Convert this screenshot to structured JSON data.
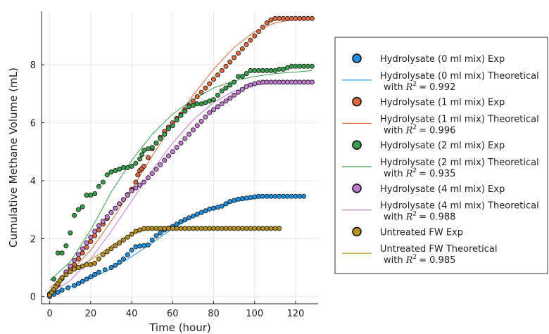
{
  "chart_data": {
    "type": "scatter",
    "xlabel": "Time (hour)",
    "ylabel": "Cumulative Methane Volume (mL)",
    "xlim": [
      -4,
      131
    ],
    "ylim": [
      -0.25,
      9.85
    ],
    "xticks": [
      0,
      20,
      40,
      60,
      80,
      100,
      120
    ],
    "yticks": [
      0,
      2,
      4,
      6,
      8
    ],
    "grid": true,
    "legend_position": "right",
    "series": [
      {
        "name": "Hydrolysate (0 ml mix) Exp",
        "kind": "points",
        "color": "#1f8fe0",
        "x": [
          0,
          2,
          4,
          6,
          9,
          12,
          14,
          16,
          18,
          20,
          22,
          24,
          27,
          30,
          32,
          34,
          36,
          38,
          40,
          42,
          44,
          46,
          48,
          50,
          52,
          54,
          56,
          58,
          60,
          62,
          64,
          66,
          68,
          70,
          72,
          74,
          76,
          78,
          80,
          82,
          84,
          86,
          88,
          90,
          92,
          94,
          96,
          98,
          100,
          102,
          104,
          106,
          108,
          110,
          112,
          114,
          116,
          118,
          120,
          122,
          124
        ],
        "y": [
          0.0,
          0.08,
          0.15,
          0.22,
          0.3,
          0.38,
          0.45,
          0.52,
          0.6,
          0.68,
          0.76,
          0.84,
          0.92,
          1.0,
          1.08,
          1.18,
          1.3,
          1.44,
          1.6,
          1.72,
          1.74,
          1.76,
          1.78,
          1.95,
          2.1,
          2.2,
          2.3,
          2.36,
          2.42,
          2.5,
          2.58,
          2.65,
          2.72,
          2.78,
          2.84,
          2.9,
          2.96,
          3.02,
          3.05,
          3.08,
          3.12,
          3.2,
          3.28,
          3.32,
          3.36,
          3.38,
          3.4,
          3.42,
          3.44,
          3.46,
          3.46,
          3.46,
          3.46,
          3.46,
          3.46,
          3.46,
          3.46,
          3.46,
          3.46,
          3.46,
          3.46
        ]
      },
      {
        "name": "Hydrolysate (0 ml mix) Theoretical",
        "r2_label": "with",
        "r2_value": "= 0.992",
        "kind": "line",
        "color": "#1f8fe0",
        "x": [
          0,
          10,
          20,
          30,
          40,
          50,
          60,
          70,
          80,
          90,
          100,
          110,
          120,
          124
        ],
        "y": [
          0.1,
          0.33,
          0.62,
          0.96,
          1.38,
          1.85,
          2.35,
          2.75,
          3.06,
          3.27,
          3.38,
          3.44,
          3.47,
          3.48
        ]
      },
      {
        "name": "Hydrolysate (1 ml mix) Exp",
        "kind": "points",
        "color": "#e0683c",
        "x": [
          0,
          2,
          4,
          6,
          8,
          10,
          12,
          14,
          16,
          18,
          20,
          22,
          24,
          26,
          28,
          30,
          32,
          34,
          36,
          38,
          40,
          42,
          43,
          44,
          45,
          46,
          48,
          50,
          52,
          54,
          56,
          58,
          60,
          62,
          64,
          66,
          68,
          70,
          72,
          74,
          76,
          78,
          80,
          82,
          84,
          86,
          88,
          90,
          92,
          94,
          96,
          98,
          100,
          102,
          104,
          106,
          108,
          110,
          112,
          114,
          116,
          118,
          120,
          122,
          124,
          126,
          128
        ],
        "y": [
          0.05,
          0.2,
          0.4,
          0.62,
          0.8,
          0.95,
          1.1,
          1.3,
          1.5,
          1.7,
          1.9,
          2.1,
          2.3,
          2.5,
          2.7,
          2.9,
          3.05,
          3.2,
          3.35,
          3.52,
          3.7,
          3.95,
          4.2,
          4.35,
          4.42,
          4.5,
          4.8,
          5.1,
          5.3,
          5.5,
          5.7,
          5.85,
          6.0,
          6.15,
          6.3,
          6.45,
          6.6,
          6.75,
          6.9,
          7.05,
          7.2,
          7.35,
          7.5,
          7.65,
          7.8,
          7.95,
          8.1,
          8.25,
          8.4,
          8.55,
          8.7,
          8.85,
          9.0,
          9.15,
          9.3,
          9.45,
          9.55,
          9.6,
          9.6,
          9.6,
          9.6,
          9.6,
          9.6,
          9.6,
          9.6,
          9.6,
          9.6
        ]
      },
      {
        "name": "Hydrolysate (1 ml mix) Theoretical",
        "r2_label": "with",
        "r2_value": "= 0.996",
        "kind": "line",
        "color": "#e0683c",
        "x": [
          0,
          10,
          20,
          30,
          40,
          50,
          60,
          70,
          80,
          90,
          100,
          110,
          120,
          128
        ],
        "y": [
          0.3,
          0.85,
          1.6,
          2.6,
          3.7,
          4.85,
          5.95,
          6.95,
          7.85,
          8.6,
          9.15,
          9.45,
          9.57,
          9.6
        ]
      },
      {
        "name": "Hydrolysate (2 ml mix) Exp",
        "kind": "points",
        "color": "#389f4d",
        "x": [
          0,
          2,
          4,
          6,
          8,
          10,
          12,
          14,
          16,
          18,
          20,
          22,
          24,
          26,
          28,
          30,
          32,
          34,
          36,
          38,
          40,
          42,
          44,
          45,
          46,
          48,
          50,
          52,
          54,
          56,
          58,
          60,
          62,
          64,
          66,
          68,
          70,
          72,
          74,
          76,
          78,
          80,
          82,
          84,
          86,
          88,
          90,
          92,
          94,
          96,
          98,
          100,
          102,
          104,
          106,
          108,
          110,
          112,
          114,
          116,
          118,
          120,
          122,
          124,
          126,
          128
        ],
        "y": [
          0.1,
          0.6,
          1.5,
          1.5,
          1.75,
          2.2,
          2.8,
          3.0,
          3.1,
          3.5,
          3.5,
          3.55,
          3.8,
          3.95,
          4.2,
          4.3,
          4.35,
          4.4,
          4.45,
          4.45,
          4.5,
          4.6,
          4.75,
          4.9,
          5.05,
          5.1,
          5.15,
          5.3,
          5.45,
          5.6,
          5.8,
          5.9,
          6.1,
          6.25,
          6.4,
          6.55,
          6.6,
          6.65,
          6.65,
          6.7,
          6.75,
          6.8,
          6.95,
          7.1,
          7.2,
          7.3,
          7.4,
          7.6,
          7.6,
          7.7,
          7.8,
          7.8,
          7.8,
          7.8,
          7.8,
          7.8,
          7.8,
          7.85,
          7.85,
          7.9,
          7.95,
          7.95,
          7.95,
          7.95,
          7.95,
          7.95
        ]
      },
      {
        "name": "Hydrolysate (2 ml mix) Theoretical",
        "r2_label": "with",
        "r2_value": "= 0.935",
        "kind": "line",
        "color": "#389f4d",
        "x": [
          0,
          10,
          20,
          30,
          40,
          50,
          60,
          70,
          80,
          90,
          100,
          110,
          120,
          128
        ],
        "y": [
          0.55,
          1.2,
          2.3,
          3.6,
          4.7,
          5.6,
          6.3,
          6.8,
          7.2,
          7.45,
          7.6,
          7.7,
          7.75,
          7.8
        ]
      },
      {
        "name": "Hydrolysate (4 ml mix) Exp",
        "kind": "points",
        "color": "#c27ad0",
        "x": [
          0,
          2,
          4,
          6,
          8,
          10,
          12,
          14,
          16,
          18,
          20,
          22,
          24,
          26,
          28,
          30,
          32,
          34,
          36,
          38,
          40,
          42,
          44,
          46,
          48,
          50,
          52,
          54,
          56,
          58,
          60,
          62,
          64,
          66,
          68,
          70,
          72,
          74,
          76,
          78,
          80,
          82,
          84,
          86,
          88,
          90,
          92,
          94,
          96,
          98,
          100,
          102,
          104,
          106,
          108,
          110,
          112,
          114,
          116,
          118,
          120,
          122,
          124,
          126,
          128
        ],
        "y": [
          0.05,
          0.25,
          0.45,
          0.65,
          0.85,
          1.05,
          1.25,
          1.45,
          1.65,
          1.85,
          2.05,
          2.25,
          2.45,
          2.6,
          2.75,
          2.9,
          3.05,
          3.2,
          3.35,
          3.5,
          3.65,
          3.75,
          3.85,
          3.95,
          4.1,
          4.25,
          4.4,
          4.55,
          4.7,
          4.85,
          5.0,
          5.15,
          5.3,
          5.45,
          5.6,
          5.75,
          5.9,
          6.05,
          6.2,
          6.35,
          6.45,
          6.55,
          6.65,
          6.75,
          6.85,
          6.95,
          7.05,
          7.15,
          7.25,
          7.3,
          7.35,
          7.38,
          7.4,
          7.4,
          7.4,
          7.4,
          7.4,
          7.4,
          7.4,
          7.4,
          7.4,
          7.4,
          7.4,
          7.4,
          7.4
        ]
      },
      {
        "name": "Hydrolysate (4 ml mix) Theoretical",
        "r2_label": "with",
        "r2_value": "= 0.988",
        "kind": "line",
        "color": "#c27ad0",
        "x": [
          0,
          10,
          20,
          30,
          40,
          50,
          60,
          70,
          80,
          90,
          100,
          110,
          120,
          128
        ],
        "y": [
          0.1,
          0.55,
          1.3,
          2.25,
          3.3,
          4.35,
          5.3,
          6.1,
          6.7,
          7.1,
          7.3,
          7.38,
          7.41,
          7.42
        ]
      },
      {
        "name": "Untreated FW Exp",
        "kind": "points",
        "color": "#b8901c",
        "x": [
          0,
          1,
          2,
          3,
          4,
          5,
          6,
          8,
          10,
          12,
          14,
          16,
          18,
          20,
          22,
          24,
          26,
          28,
          30,
          32,
          34,
          36,
          38,
          40,
          42,
          44,
          46,
          48,
          50,
          52,
          54,
          56,
          58,
          60,
          62,
          64,
          66,
          68,
          70,
          72,
          74,
          76,
          78,
          80,
          82,
          84,
          86,
          88,
          90,
          92,
          94,
          96,
          98,
          100,
          102,
          104,
          106,
          108,
          110,
          112
        ],
        "y": [
          0.05,
          0.15,
          0.25,
          0.35,
          0.45,
          0.55,
          0.65,
          0.75,
          0.85,
          0.95,
          1.0,
          1.05,
          1.1,
          1.1,
          1.15,
          1.3,
          1.45,
          1.55,
          1.65,
          1.75,
          1.85,
          1.95,
          2.05,
          2.15,
          2.25,
          2.3,
          2.35,
          2.35,
          2.35,
          2.35,
          2.35,
          2.35,
          2.35,
          2.35,
          2.35,
          2.35,
          2.35,
          2.35,
          2.35,
          2.35,
          2.35,
          2.35,
          2.35,
          2.35,
          2.35,
          2.35,
          2.35,
          2.35,
          2.35,
          2.35,
          2.35,
          2.35,
          2.35,
          2.35,
          2.35,
          2.35,
          2.35,
          2.35,
          2.35,
          2.35
        ]
      },
      {
        "name": "Untreated FW Theoretical",
        "r2_label": "with",
        "r2_value": "= 0.985",
        "kind": "line",
        "color": "#b8901c",
        "x": [
          0,
          5,
          10,
          15,
          20,
          25,
          30,
          35,
          40,
          45,
          50,
          60,
          70,
          80,
          90,
          100,
          112
        ],
        "y": [
          0.2,
          0.55,
          0.82,
          1.05,
          1.27,
          1.5,
          1.75,
          1.98,
          2.15,
          2.26,
          2.32,
          2.35,
          2.35,
          2.35,
          2.35,
          2.35,
          2.35
        ]
      }
    ]
  }
}
